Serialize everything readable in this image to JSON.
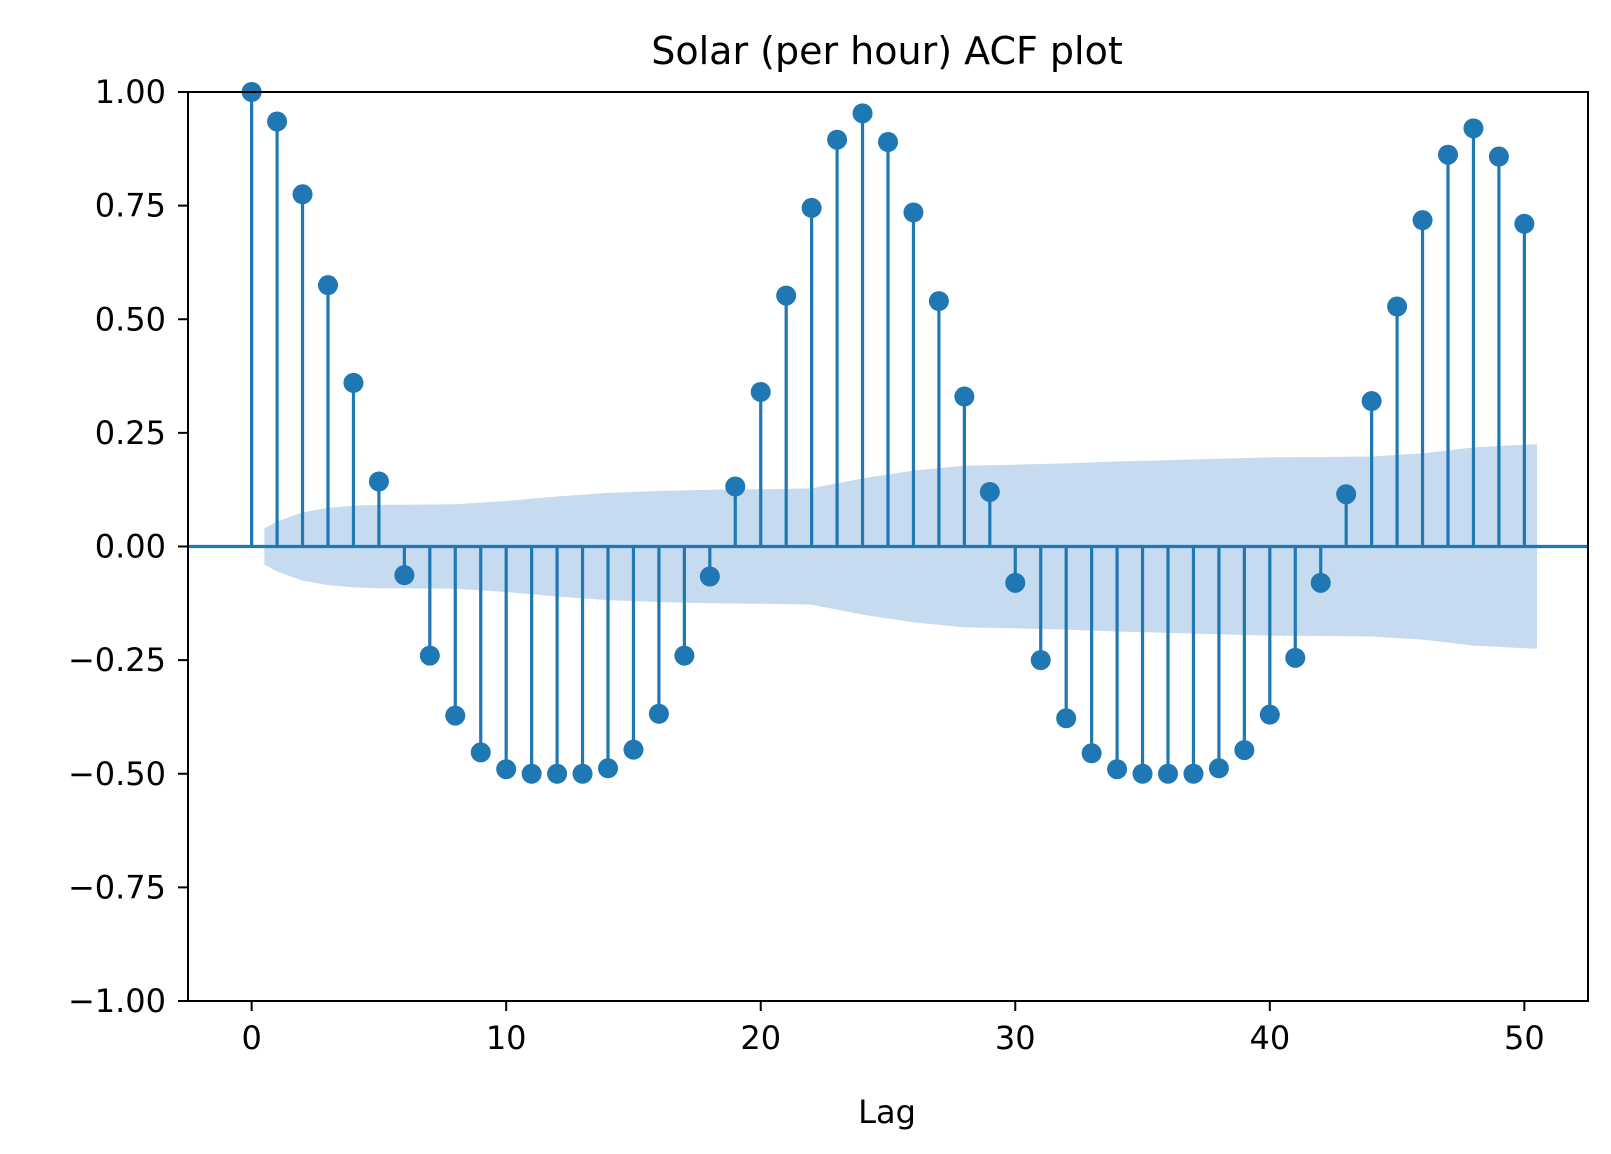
{
  "chart_data": {
    "type": "stem",
    "title": "Solar (per hour) ACF plot",
    "xlabel": "Lag",
    "ylabel": "",
    "xlim": [
      -2.5,
      52.5
    ],
    "ylim": [
      -1.0,
      1.0
    ],
    "xticks": [
      0,
      10,
      20,
      30,
      40,
      50
    ],
    "xtick_labels": [
      "0",
      "10",
      "20",
      "30",
      "40",
      "50"
    ],
    "yticks": [
      1.0,
      0.75,
      0.5,
      0.25,
      0.0,
      -0.25,
      -0.5,
      -0.75,
      -1.0
    ],
    "ytick_labels": [
      "1.00",
      "0.75",
      "0.50",
      "0.25",
      "0.00",
      "−0.25",
      "−0.50",
      "−0.75",
      "−1.00"
    ],
    "grid": false,
    "colors": {
      "stem": "#1f77b4",
      "confidence_band": "#c6dbef",
      "axes": "#000000"
    },
    "lags": [
      0,
      1,
      2,
      3,
      4,
      5,
      6,
      7,
      8,
      9,
      10,
      11,
      12,
      13,
      14,
      15,
      16,
      17,
      18,
      19,
      20,
      21,
      22,
      23,
      24,
      25,
      26,
      27,
      28,
      29,
      30,
      31,
      32,
      33,
      34,
      35,
      36,
      37,
      38,
      39,
      40,
      41,
      42,
      43,
      44,
      45,
      46,
      47,
      48,
      49,
      50
    ],
    "acf": [
      1.0,
      0.935,
      0.775,
      0.575,
      0.36,
      0.143,
      -0.063,
      -0.24,
      -0.372,
      -0.453,
      -0.49,
      -0.5,
      -0.5,
      -0.5,
      -0.488,
      -0.447,
      -0.368,
      -0.24,
      -0.066,
      0.132,
      0.34,
      0.552,
      0.745,
      0.895,
      0.953,
      0.89,
      0.735,
      0.54,
      0.33,
      0.12,
      -0.08,
      -0.25,
      -0.378,
      -0.455,
      -0.49,
      -0.5,
      -0.5,
      -0.5,
      -0.488,
      -0.448,
      -0.37,
      -0.245,
      -0.08,
      0.115,
      0.32,
      0.528,
      0.718,
      0.862,
      0.92,
      0.858,
      0.71
    ],
    "confidence_band": {
      "lags": [
        0.5,
        1,
        2,
        3,
        4,
        5,
        6,
        8,
        10,
        12,
        14,
        16,
        18,
        20,
        22,
        24,
        26,
        28,
        30,
        32,
        34,
        36,
        38,
        40,
        42,
        44,
        46,
        48,
        50,
        50.5
      ],
      "upper": [
        0.04,
        0.055,
        0.075,
        0.085,
        0.09,
        0.092,
        0.092,
        0.093,
        0.1,
        0.11,
        0.118,
        0.122,
        0.125,
        0.126,
        0.128,
        0.15,
        0.167,
        0.178,
        0.18,
        0.183,
        0.187,
        0.19,
        0.193,
        0.196,
        0.197,
        0.198,
        0.205,
        0.218,
        0.224,
        0.225
      ]
    }
  }
}
